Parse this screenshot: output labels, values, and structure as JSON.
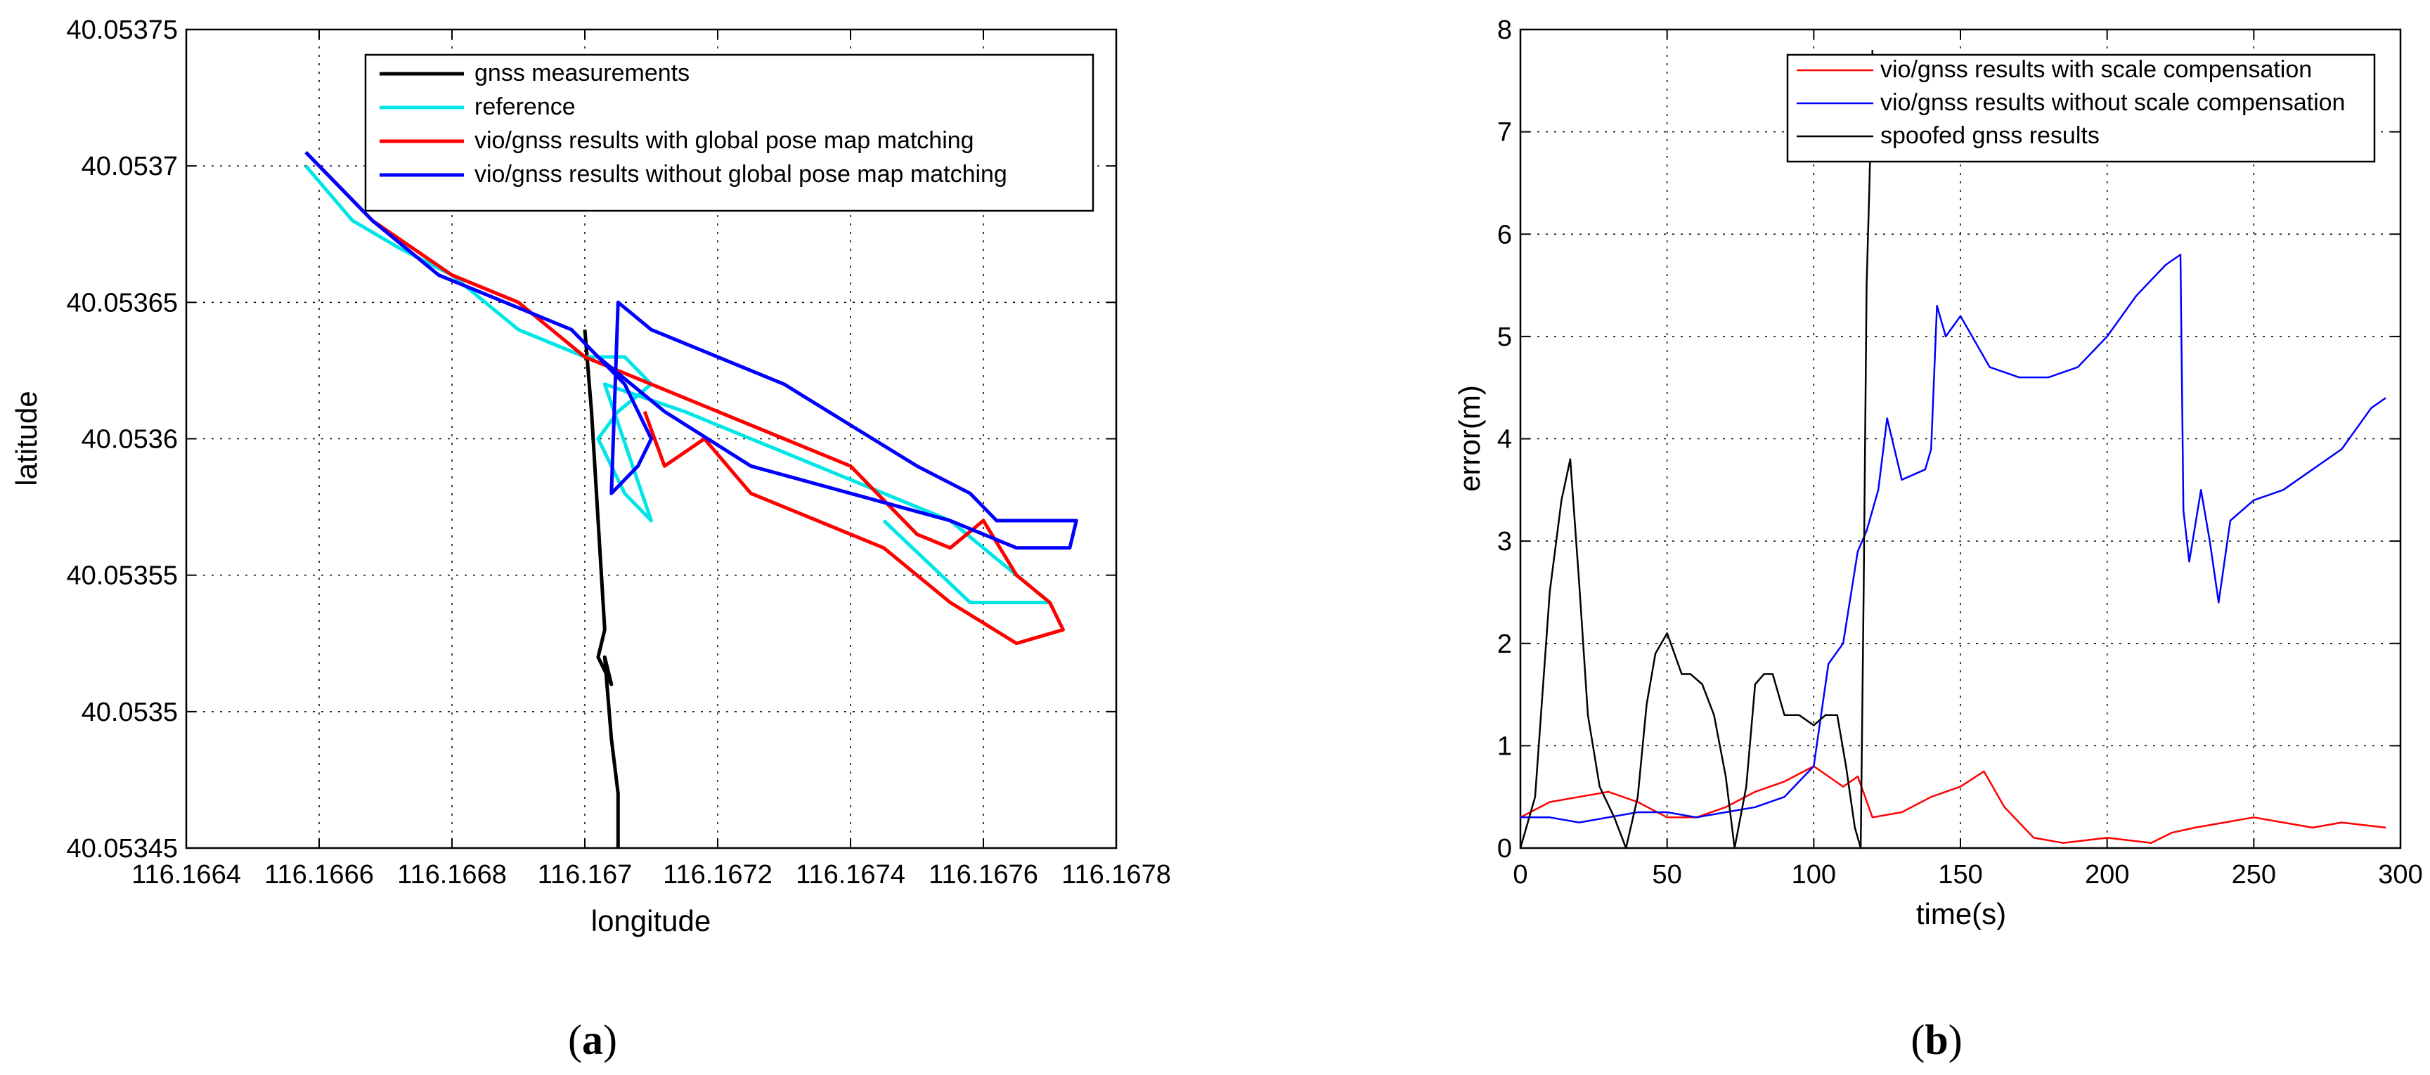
{
  "chart_data": [
    {
      "type": "line",
      "panel_label": "a",
      "xlabel": "longitude",
      "ylabel": "latitude",
      "xlim": [
        116.1664,
        116.1678
      ],
      "ylim": [
        40.05345,
        40.05375
      ],
      "xticks": [
        "116.1664",
        "116.1666",
        "116.1668",
        "116.167",
        "116.1672",
        "116.1674",
        "116.1676",
        "116.1678"
      ],
      "yticks": [
        "40.05345",
        "40.0535",
        "40.05355",
        "40.0536",
        "40.05365",
        "40.0537",
        "40.05375"
      ],
      "grid": true,
      "legend_position": "top-right",
      "series": [
        {
          "name": "gnss measurements",
          "color": "#000000",
          "x": [
            116.167,
            116.16701,
            116.16702,
            116.16703,
            116.16702,
            116.16704,
            116.16703,
            116.16704,
            116.16705,
            116.16705
          ],
          "y": [
            40.05364,
            40.05361,
            40.05357,
            40.05353,
            40.05352,
            40.05351,
            40.05352,
            40.05349,
            40.05347,
            40.05345
          ]
        },
        {
          "name": "reference",
          "color": "#00e5e5",
          "x": [
            116.16658,
            116.16665,
            116.16672,
            116.1668,
            116.1669,
            116.167,
            116.16706,
            116.1671,
            116.16705,
            116.16702,
            116.16706,
            116.1671,
            116.16703,
            116.16715,
            116.16725,
            116.16735,
            116.16745,
            116.16755,
            116.16765,
            116.1677,
            116.16758,
            116.16745
          ],
          "y": [
            40.0537,
            40.05368,
            40.05367,
            40.05366,
            40.05364,
            40.05363,
            40.05363,
            40.05362,
            40.05361,
            40.0536,
            40.05358,
            40.05357,
            40.05362,
            40.05361,
            40.0536,
            40.05359,
            40.05358,
            40.05357,
            40.05355,
            40.05354,
            40.05354,
            40.05357
          ]
        },
        {
          "name": "vio/gnss results with global pose map matching",
          "color": "#ff0000",
          "x": [
            116.16658,
            116.16668,
            116.1668,
            116.1669,
            116.167,
            116.1671,
            116.1672,
            116.1673,
            116.1674,
            116.1675,
            116.16755,
            116.1676,
            116.16765,
            116.1677,
            116.16772,
            116.16765,
            116.16755,
            116.16745,
            116.16735,
            116.16725,
            116.16718,
            116.16712,
            116.16709
          ],
          "y": [
            40.053705,
            40.05368,
            40.05366,
            40.05365,
            40.05363,
            40.05362,
            40.05361,
            40.0536,
            40.05359,
            40.053565,
            40.05356,
            40.05357,
            40.05355,
            40.05354,
            40.05353,
            40.053525,
            40.05354,
            40.05356,
            40.05357,
            40.05358,
            40.0536,
            40.05359,
            40.05361
          ]
        },
        {
          "name": "vio/gnss results without global pose map matching",
          "color": "#0000ff",
          "x": [
            116.16658,
            116.16668,
            116.16678,
            116.16688,
            116.16698,
            116.16706,
            116.1671,
            116.16708,
            116.16704,
            116.16705,
            116.1671,
            116.1672,
            116.1673,
            116.1674,
            116.1675,
            116.16758,
            116.16762,
            116.16768,
            116.16774,
            116.16773,
            116.16765,
            116.16755,
            116.1674,
            116.16725,
            116.16712,
            116.16702
          ],
          "y": [
            40.053705,
            40.05368,
            40.05366,
            40.05365,
            40.05364,
            40.05362,
            40.0536,
            40.05359,
            40.05358,
            40.05365,
            40.05364,
            40.05363,
            40.05362,
            40.053605,
            40.05359,
            40.05358,
            40.05357,
            40.05357,
            40.05357,
            40.05356,
            40.05356,
            40.05357,
            40.05358,
            40.05359,
            40.05361,
            40.05363
          ]
        }
      ]
    },
    {
      "type": "line",
      "panel_label": "b",
      "xlabel": "time(s)",
      "ylabel": "error(m)",
      "xlim": [
        0,
        300
      ],
      "ylim": [
        0,
        8
      ],
      "xticks": [
        "0",
        "50",
        "100",
        "150",
        "200",
        "250",
        "300"
      ],
      "yticks": [
        "0",
        "1",
        "2",
        "3",
        "4",
        "5",
        "6",
        "7",
        "8"
      ],
      "grid": true,
      "legend_position": "top-right",
      "series": [
        {
          "name": "vio/gnss results with scale compensation",
          "color": "#ff0000",
          "x": [
            0,
            10,
            20,
            30,
            40,
            50,
            60,
            70,
            80,
            90,
            100,
            110,
            115,
            120,
            130,
            140,
            150,
            158,
            165,
            175,
            185,
            200,
            215,
            222,
            230,
            240,
            250,
            260,
            270,
            280,
            295
          ],
          "y": [
            0.3,
            0.45,
            0.5,
            0.55,
            0.45,
            0.3,
            0.3,
            0.4,
            0.55,
            0.65,
            0.8,
            0.6,
            0.7,
            0.3,
            0.35,
            0.5,
            0.6,
            0.75,
            0.4,
            0.1,
            0.05,
            0.1,
            0.05,
            0.15,
            0.2,
            0.25,
            0.3,
            0.25,
            0.2,
            0.25,
            0.2
          ]
        },
        {
          "name": "vio/gnss results without scale compensation",
          "color": "#0000ff",
          "x": [
            0,
            10,
            20,
            30,
            40,
            50,
            60,
            70,
            80,
            90,
            100,
            105,
            110,
            115,
            118,
            122,
            125,
            130,
            138,
            140,
            142,
            145,
            150,
            160,
            170,
            180,
            190,
            200,
            210,
            220,
            225,
            226,
            228,
            232,
            235,
            238,
            242,
            250,
            260,
            270,
            280,
            290,
            295
          ],
          "y": [
            0.3,
            0.3,
            0.25,
            0.3,
            0.35,
            0.35,
            0.3,
            0.35,
            0.4,
            0.5,
            0.8,
            1.8,
            2.0,
            2.9,
            3.1,
            3.5,
            4.2,
            3.6,
            3.7,
            3.9,
            5.3,
            5.0,
            5.2,
            4.7,
            4.6,
            4.6,
            4.7,
            5.0,
            5.4,
            5.7,
            5.8,
            3.3,
            2.8,
            3.5,
            3.0,
            2.4,
            3.2,
            3.4,
            3.5,
            3.7,
            3.9,
            4.3,
            4.4
          ]
        },
        {
          "name": "spoofed gnss results",
          "color": "#000000",
          "x": [
            0,
            5,
            10,
            14,
            17,
            20,
            23,
            27,
            32,
            36,
            40,
            43,
            46,
            50,
            55,
            58,
            62,
            66,
            70,
            73,
            77,
            80,
            83,
            86,
            90,
            95,
            100,
            104,
            108,
            111,
            114,
            116,
            117,
            118,
            119,
            120
          ],
          "y": [
            0.0,
            0.5,
            2.5,
            3.4,
            3.8,
            2.6,
            1.3,
            0.6,
            0.3,
            0.0,
            0.5,
            1.4,
            1.9,
            2.1,
            1.7,
            1.7,
            1.6,
            1.3,
            0.7,
            0.0,
            0.6,
            1.6,
            1.7,
            1.7,
            1.3,
            1.3,
            1.2,
            1.3,
            1.3,
            0.8,
            0.2,
            0.0,
            2.5,
            5.5,
            6.5,
            7.8
          ]
        }
      ]
    }
  ]
}
